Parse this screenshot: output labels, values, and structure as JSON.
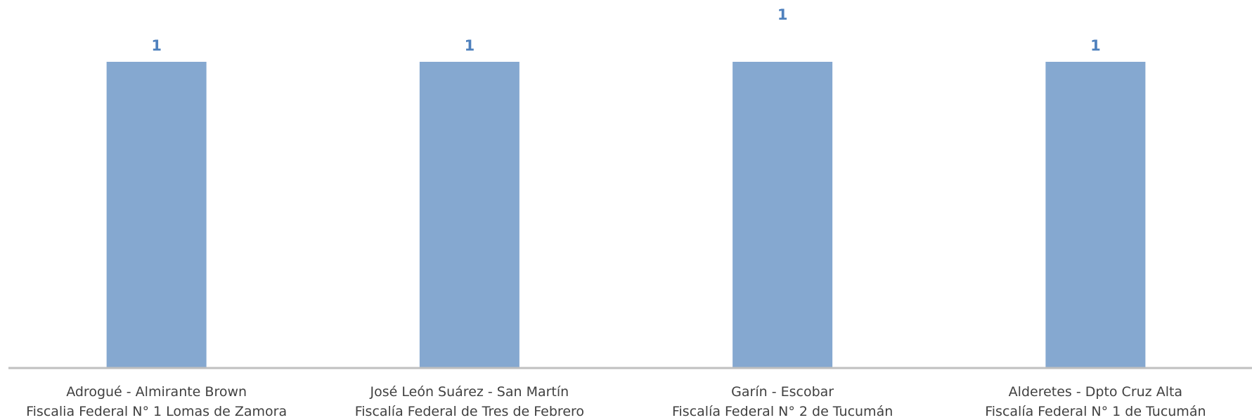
{
  "chart_data": {
    "type": "bar",
    "categories": [
      [
        "Adrogué - Almirante Brown",
        "Fiscalia Federal N° 1 Lomas de Zamora"
      ],
      [
        "José León Suárez - San Martín",
        "Fiscalía Federal de Tres de Febrero"
      ],
      [
        "Garín - Escobar",
        "Fiscalía Federal N° 2 de Tucumán"
      ],
      [
        "Alderetes - Dpto Cruz Alta",
        "Fiscalía Federal N° 1 de Tucumán"
      ]
    ],
    "values": [
      1,
      1,
      1,
      1
    ],
    "data_labels": [
      "1",
      "1",
      "1",
      "1"
    ],
    "ylim": [
      0,
      1
    ],
    "grid": false,
    "legend": "none",
    "colors": {
      "bar": "#85A8D0",
      "data_label": "#4F81BD",
      "axis": "#BFBFBF",
      "category_text": "#404040"
    }
  }
}
